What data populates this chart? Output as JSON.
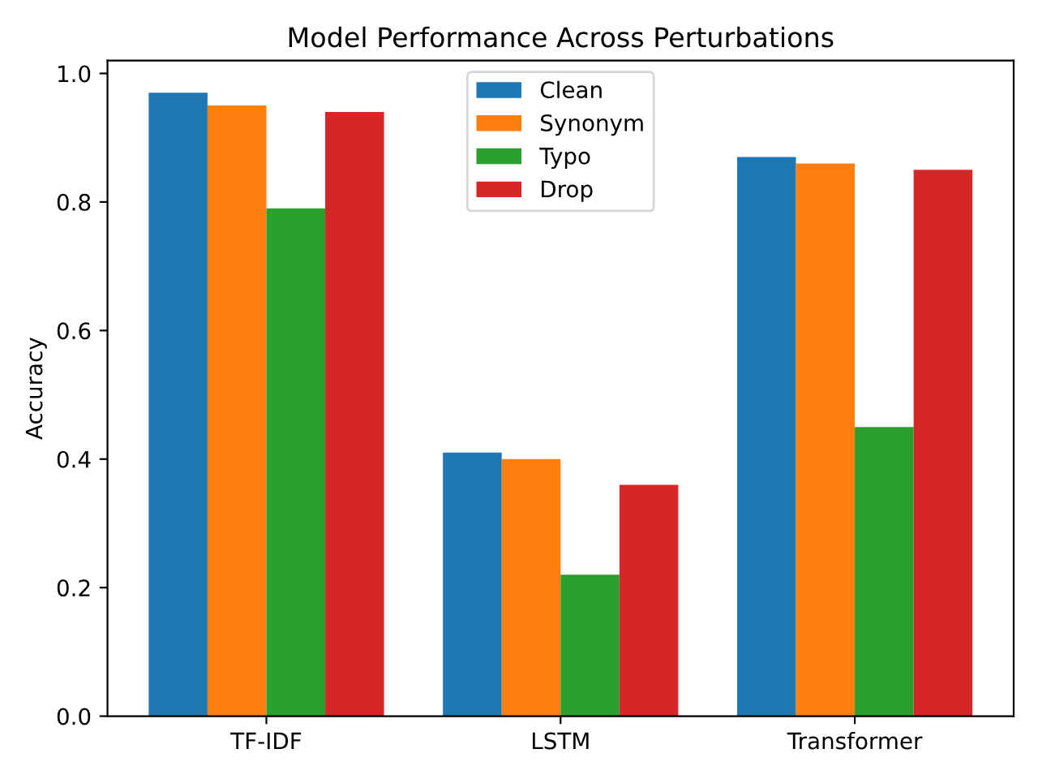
{
  "chart_data": {
    "type": "bar",
    "title": "Model Performance Across Perturbations",
    "ylabel": "Accuracy",
    "categories": [
      "TF-IDF",
      "LSTM",
      "Transformer"
    ],
    "series": [
      {
        "name": "Clean",
        "color": "#1f77b4",
        "values": [
          0.97,
          0.41,
          0.87
        ]
      },
      {
        "name": "Synonym",
        "color": "#ff7f0e",
        "values": [
          0.95,
          0.4,
          0.86
        ]
      },
      {
        "name": "Typo",
        "color": "#2ca02c",
        "values": [
          0.79,
          0.22,
          0.45
        ]
      },
      {
        "name": "Drop",
        "color": "#d62728",
        "values": [
          0.94,
          0.36,
          0.85
        ]
      }
    ],
    "ylim": [
      0,
      1.02
    ],
    "yticks": [
      {
        "value": 0,
        "label": "0.0"
      },
      0.2,
      0.4,
      0.6,
      0.8,
      {
        "value": 1,
        "label": "1.0"
      }
    ],
    "legend": "top",
    "grid": false
  }
}
